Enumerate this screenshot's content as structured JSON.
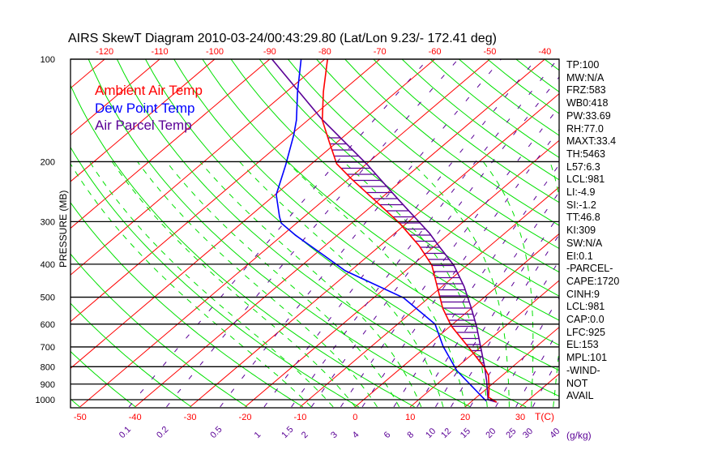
{
  "chart_data": {
    "type": "line",
    "subtype": "skew-t log-p",
    "title": "AIRS SkewT Diagram 2010-03-24/00:43:29.80 (Lat/Lon 9.23/- 172.41 deg)",
    "ylabel": "PRESSURE (MB)",
    "xlabel": "T(C)",
    "mixing_ratio_unit": "(g/kg)",
    "pressure_range": [
      100,
      1050
    ],
    "pressure_ticks": [
      100,
      200,
      300,
      400,
      500,
      600,
      700,
      800,
      900,
      1000
    ],
    "top_temp_ticks": [
      -120,
      -110,
      -100,
      -90,
      -80,
      -70,
      -60,
      -50,
      -40
    ],
    "bottom_temp_ticks": [
      -50,
      -40,
      -30,
      -20,
      -10,
      0,
      10,
      20,
      30
    ],
    "mixing_ratio_ticks": [
      "0.1",
      "0.2",
      "0.5",
      "1",
      "1.5",
      "2",
      "3",
      "4",
      "6",
      "8",
      "10",
      "12",
      "15",
      "20",
      "25",
      "30",
      "40"
    ],
    "legend": [
      {
        "label": "Ambient Air Temp",
        "color": "#ff0000"
      },
      {
        "label": "Dew Point Temp",
        "color": "#0000ff"
      },
      {
        "label": "Air Parcel Temp",
        "color": "#5a0096"
      }
    ],
    "legend_position": "top-left",
    "series": [
      {
        "name": "Ambient Air Temp",
        "color": "#ff0000",
        "points": [
          [
            1017,
            24.7
          ],
          [
            984,
            22.2
          ],
          [
            913,
            19.9
          ],
          [
            847,
            17.4
          ],
          [
            802,
            14.9
          ],
          [
            709,
            8.4
          ],
          [
            607,
            0.1
          ],
          [
            539,
            -5.2
          ],
          [
            465,
            -10.9
          ],
          [
            403,
            -16.4
          ],
          [
            353,
            -22.9
          ],
          [
            303,
            -31.3
          ],
          [
            260,
            -40.6
          ],
          [
            224,
            -49.7
          ],
          [
            203,
            -55.4
          ],
          [
            177,
            -61.0
          ],
          [
            151,
            -67.4
          ],
          [
            124.5,
            -73.3
          ],
          [
            100,
            -79.5
          ]
        ]
      },
      {
        "name": "Dew Point Temp",
        "color": "#0000ff",
        "points": [
          [
            1010,
            22.6
          ],
          [
            867,
            13.8
          ],
          [
            820,
            10.6
          ],
          [
            697,
            3.0
          ],
          [
            600,
            -3.2
          ],
          [
            502,
            -14.6
          ],
          [
            418,
            -31.0
          ],
          [
            377,
            -38.1
          ],
          [
            329,
            -47.6
          ],
          [
            303,
            -52.8
          ],
          [
            290,
            -54.5
          ],
          [
            250,
            -59.8
          ],
          [
            204,
            -64.5
          ],
          [
            167,
            -69.4
          ],
          [
            151,
            -72.1
          ],
          [
            124.5,
            -78.0
          ],
          [
            100,
            -84.3
          ]
        ]
      },
      {
        "name": "Air Parcel Temp",
        "color": "#5a0096",
        "points": [
          [
            1017,
            24.7
          ],
          [
            1000,
            22.6
          ],
          [
            880,
            18.3
          ],
          [
            802,
            15.0
          ],
          [
            697,
            9.8
          ],
          [
            612,
            5.0
          ],
          [
            539,
            0.0
          ],
          [
            465,
            -6.0
          ],
          [
            403,
            -12.4
          ],
          [
            348,
            -20.1
          ],
          [
            325,
            -23.6
          ],
          [
            260,
            -36.2
          ],
          [
            204,
            -49.7
          ],
          [
            150,
            -67.7
          ],
          [
            100,
            -89.6
          ]
        ]
      }
    ],
    "colors": {
      "isotherm": "#ff0000",
      "dry_adiabat": "#00e000",
      "moist_adiabat": "#00e000",
      "mixing_ratio": "#5a0096",
      "frame": "#000000"
    }
  },
  "stats": [
    "TP:100",
    "MW:N/A",
    "FRZ:583",
    "WB0:418",
    "PW:33.69",
    "RH:77.0",
    "MAXT:33.4",
    "TH:5463",
    "L57:6.3",
    "LCL:981",
    "LI:-4.9",
    "SI:-1.2",
    "TT:46.8",
    "KI:309",
    "SW:N/A",
    "EI:0.1",
    "-PARCEL-",
    "CAPE:1720",
    "CINH:9",
    "LCL:981",
    "CAP:0.0",
    "LFC:925",
    "EL:153",
    "MPL:101",
    "-WIND-",
    "NOT",
    "AVAIL"
  ]
}
